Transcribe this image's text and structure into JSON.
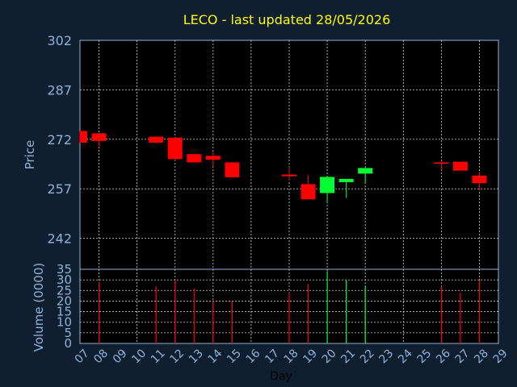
{
  "chart_data": [
    {
      "type": "candlestick",
      "title": "LECO - last updated 28/05/2026",
      "ylabel": "Price",
      "ylim": [
        232.6,
        302
      ],
      "yticks": [
        "302",
        "287",
        "272",
        "257",
        "242"
      ],
      "xtick_labels": [
        "07",
        "08",
        "09",
        "10",
        "11",
        "12",
        "13",
        "14",
        "15",
        "16",
        "17",
        "18",
        "19",
        "20",
        "21",
        "22",
        "23",
        "24",
        "25",
        "26",
        "27",
        "28",
        "29"
      ],
      "grid": true,
      "up_color": "#00ff33",
      "down_color": "#ff0000",
      "candles": [
        {
          "day": "07",
          "open": 274.5,
          "close": 271.0,
          "high": 274.5,
          "low": 271.0
        },
        {
          "day": "08",
          "open": 273.8,
          "close": 271.5,
          "high": 273.8,
          "low": 269.5
        },
        {
          "day": "11",
          "open": 272.8,
          "close": 271.0,
          "high": 272.8,
          "low": 270.8
        },
        {
          "day": "12",
          "open": 272.5,
          "close": 266.0,
          "high": 272.5,
          "low": 265.5
        },
        {
          "day": "13",
          "open": 267.5,
          "close": 265.0,
          "high": 267.5,
          "low": 265.0
        },
        {
          "day": "14",
          "open": 267.0,
          "close": 265.8,
          "high": 268.2,
          "low": 263.8
        },
        {
          "day": "15",
          "open": 265.0,
          "close": 260.5,
          "high": 265.0,
          "low": 260.5
        },
        {
          "day": "18",
          "open": 261.3,
          "close": 260.8,
          "high": 263.6,
          "low": 259.5
        },
        {
          "day": "19",
          "open": 258.4,
          "close": 253.8,
          "high": 261.2,
          "low": 253.8
        },
        {
          "day": "20",
          "open": 255.7,
          "close": 260.6,
          "high": 260.6,
          "low": 252.6
        },
        {
          "day": "21",
          "open": 259.0,
          "close": 260.0,
          "high": 260.0,
          "low": 254.2
        },
        {
          "day": "22",
          "open": 261.6,
          "close": 263.3,
          "high": 263.3,
          "low": 258.5
        },
        {
          "day": "26",
          "open": 265.0,
          "close": 264.6,
          "high": 265.5,
          "low": 262.7
        },
        {
          "day": "27",
          "open": 265.2,
          "close": 262.5,
          "high": 265.2,
          "low": 262.5
        },
        {
          "day": "28",
          "open": 261.0,
          "close": 258.7,
          "high": 262.0,
          "low": 256.5
        }
      ]
    },
    {
      "type": "bar",
      "xlabel": "Day",
      "ylabel": "Volume (0000)",
      "ylim": [
        0,
        35
      ],
      "yticks": [
        "0",
        "5",
        "10",
        "15",
        "20",
        "25",
        "30",
        "35"
      ],
      "grid": true,
      "bars": [
        {
          "day": "08",
          "value": 29,
          "color": "#ff0000"
        },
        {
          "day": "11",
          "value": 27,
          "color": "#ff0000"
        },
        {
          "day": "12",
          "value": 30,
          "color": "#ff0000"
        },
        {
          "day": "13",
          "value": 26,
          "color": "#ff0000"
        },
        {
          "day": "14",
          "value": 20,
          "color": "#ff0000"
        },
        {
          "day": "15",
          "value": 20,
          "color": "#ff0000"
        },
        {
          "day": "18",
          "value": 24,
          "color": "#ff0000"
        },
        {
          "day": "19",
          "value": 28,
          "color": "#ff0000"
        },
        {
          "day": "20",
          "value": 34,
          "color": "#00ff33"
        },
        {
          "day": "21",
          "value": 30,
          "color": "#00ff33"
        },
        {
          "day": "22",
          "value": 27,
          "color": "#00ff33"
        },
        {
          "day": "26",
          "value": 27,
          "color": "#ff0000"
        },
        {
          "day": "27",
          "value": 24,
          "color": "#ff0000"
        },
        {
          "day": "28",
          "value": 30,
          "color": "#ff0000"
        }
      ]
    }
  ]
}
